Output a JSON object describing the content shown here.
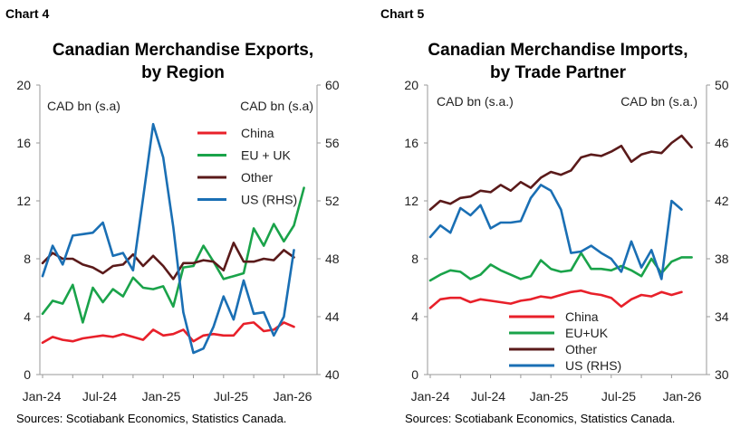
{
  "chart_data": [
    {
      "type": "line",
      "chart_number": "Chart 4",
      "title": "Canadian Merchandise Exports, by Region",
      "title_lines": [
        "Canadian Merchandise Exports,",
        "by Region"
      ],
      "left_axis_label": "CAD bn (s.a)",
      "right_axis_label": "CAD bn (s.a)",
      "ylim_left": [
        0,
        20
      ],
      "yticks_left": [
        "0",
        "4",
        "8",
        "12",
        "16",
        "20"
      ],
      "ylim_right": [
        40,
        60
      ],
      "yticks_right": [
        "40",
        "44",
        "48",
        "52",
        "56",
        "60"
      ],
      "x_tick_labels": [
        "Jan-24",
        "Jul-24",
        "Jan-25",
        "Jul-25",
        "Jan-26"
      ],
      "x_months": [
        "2024-01",
        "2024-02",
        "2024-03",
        "2024-04",
        "2024-05",
        "2024-06",
        "2024-07",
        "2024-08",
        "2024-09",
        "2024-10",
        "2024-11",
        "2024-12",
        "2025-01",
        "2025-02",
        "2025-03",
        "2025-04",
        "2025-05",
        "2025-06",
        "2025-07",
        "2025-08",
        "2025-09",
        "2025-10",
        "2025-11",
        "2025-12",
        "2026-01",
        "2026-02",
        "2026-03"
      ],
      "grid": false,
      "legend_position": "top-right",
      "series": [
        {
          "name": "China",
          "axis": "left",
          "color": "#e8202a",
          "values": [
            2.2,
            2.6,
            2.4,
            2.3,
            2.5,
            2.6,
            2.7,
            2.6,
            2.8,
            2.6,
            2.4,
            3.1,
            2.7,
            2.8,
            3.1,
            2.3,
            2.7,
            2.8,
            2.7,
            2.7,
            3.5,
            3.6,
            3.0,
            3.1,
            3.6,
            3.3,
            null
          ]
        },
        {
          "name": "EU + UK",
          "axis": "left",
          "color": "#1aa34a",
          "values": [
            4.2,
            5.1,
            4.9,
            6.2,
            3.6,
            6.0,
            5.0,
            5.9,
            5.4,
            6.7,
            6.0,
            5.9,
            6.1,
            4.7,
            7.4,
            7.5,
            8.9,
            7.8,
            6.6,
            6.8,
            7.0,
            10.1,
            8.9,
            10.4,
            9.2,
            10.3,
            12.9
          ]
        },
        {
          "name": "Other",
          "axis": "left",
          "color": "#5a1a1a",
          "values": [
            7.7,
            8.4,
            8.0,
            8.0,
            7.6,
            7.4,
            7.0,
            7.5,
            7.6,
            8.3,
            7.5,
            8.2,
            7.5,
            6.6,
            7.7,
            7.7,
            7.9,
            7.8,
            7.2,
            9.1,
            7.8,
            7.8,
            8.0,
            7.9,
            8.6,
            8.1,
            null
          ]
        },
        {
          "name": "US (RHS)",
          "axis": "right",
          "color": "#1a6fb4",
          "values": [
            46.8,
            48.9,
            47.6,
            49.6,
            49.7,
            49.8,
            50.5,
            48.2,
            48.4,
            47.2,
            52.2,
            57.3,
            55.0,
            50.2,
            44.3,
            41.5,
            41.8,
            43.3,
            45.4,
            43.8,
            46.5,
            44.2,
            44.3,
            42.7,
            44.0,
            48.6,
            null
          ]
        }
      ]
    },
    {
      "type": "line",
      "chart_number": "Chart 5",
      "title": "Canadian Merchandise Imports, by Trade Partner",
      "title_lines": [
        "Canadian Merchandise Imports,",
        "by Trade Partner"
      ],
      "left_axis_label": "CAD bn (s.a.)",
      "right_axis_label": "CAD bn (s.a.)",
      "ylim_left": [
        0,
        20
      ],
      "yticks_left": [
        "0",
        "4",
        "8",
        "12",
        "16",
        "20"
      ],
      "ylim_right": [
        30,
        50
      ],
      "yticks_right": [
        "30",
        "34",
        "38",
        "42",
        "46",
        "50"
      ],
      "x_tick_labels": [
        "Jan-24",
        "Jul-24",
        "Jan-25",
        "Jul-25",
        "Jan-26"
      ],
      "x_months": [
        "2024-01",
        "2024-02",
        "2024-03",
        "2024-04",
        "2024-05",
        "2024-06",
        "2024-07",
        "2024-08",
        "2024-09",
        "2024-10",
        "2024-11",
        "2024-12",
        "2025-01",
        "2025-02",
        "2025-03",
        "2025-04",
        "2025-05",
        "2025-06",
        "2025-07",
        "2025-08",
        "2025-09",
        "2025-10",
        "2025-11",
        "2025-12",
        "2026-01",
        "2026-02",
        "2026-03"
      ],
      "grid": false,
      "legend_position": "bottom-left",
      "series": [
        {
          "name": "China",
          "axis": "left",
          "color": "#e8202a",
          "values": [
            4.6,
            5.2,
            5.3,
            5.3,
            5.0,
            5.2,
            5.1,
            5.0,
            4.9,
            5.1,
            5.2,
            5.4,
            5.3,
            5.5,
            5.7,
            5.8,
            5.6,
            5.5,
            5.3,
            4.7,
            5.2,
            5.5,
            5.4,
            5.7,
            5.5,
            5.7,
            null
          ]
        },
        {
          "name": "EU+UK",
          "axis": "left",
          "color": "#1aa34a",
          "values": [
            6.5,
            6.9,
            7.2,
            7.1,
            6.6,
            6.9,
            7.6,
            7.2,
            6.9,
            6.6,
            6.8,
            7.9,
            7.3,
            7.1,
            7.2,
            8.4,
            7.3,
            7.3,
            7.2,
            7.5,
            7.2,
            6.8,
            8.0,
            7.0,
            7.8,
            8.1,
            8.1
          ]
        },
        {
          "name": "Other",
          "axis": "left",
          "color": "#5a1a1a",
          "values": [
            11.4,
            12.0,
            11.8,
            12.2,
            12.3,
            12.7,
            12.6,
            13.1,
            12.7,
            13.3,
            12.9,
            13.6,
            14.0,
            13.8,
            14.1,
            15.0,
            15.2,
            15.1,
            15.4,
            15.8,
            14.7,
            15.2,
            15.4,
            15.3,
            16.0,
            16.5,
            15.7
          ]
        },
        {
          "name": "US (RHS)",
          "axis": "right",
          "color": "#1a6fb4",
          "values": [
            39.5,
            40.3,
            39.8,
            41.5,
            41.0,
            41.7,
            40.1,
            40.5,
            40.5,
            40.6,
            42.2,
            43.1,
            42.7,
            41.4,
            38.4,
            38.5,
            38.9,
            38.4,
            38.0,
            37.1,
            39.2,
            37.4,
            38.6,
            36.6,
            42.0,
            41.4,
            null
          ]
        }
      ]
    }
  ],
  "footer": {
    "left_source": "Sources: Scotiabank Economics, Statistics Canada.",
    "right_source": "Sources: Scotiabank Economics, Statistics Canada."
  }
}
